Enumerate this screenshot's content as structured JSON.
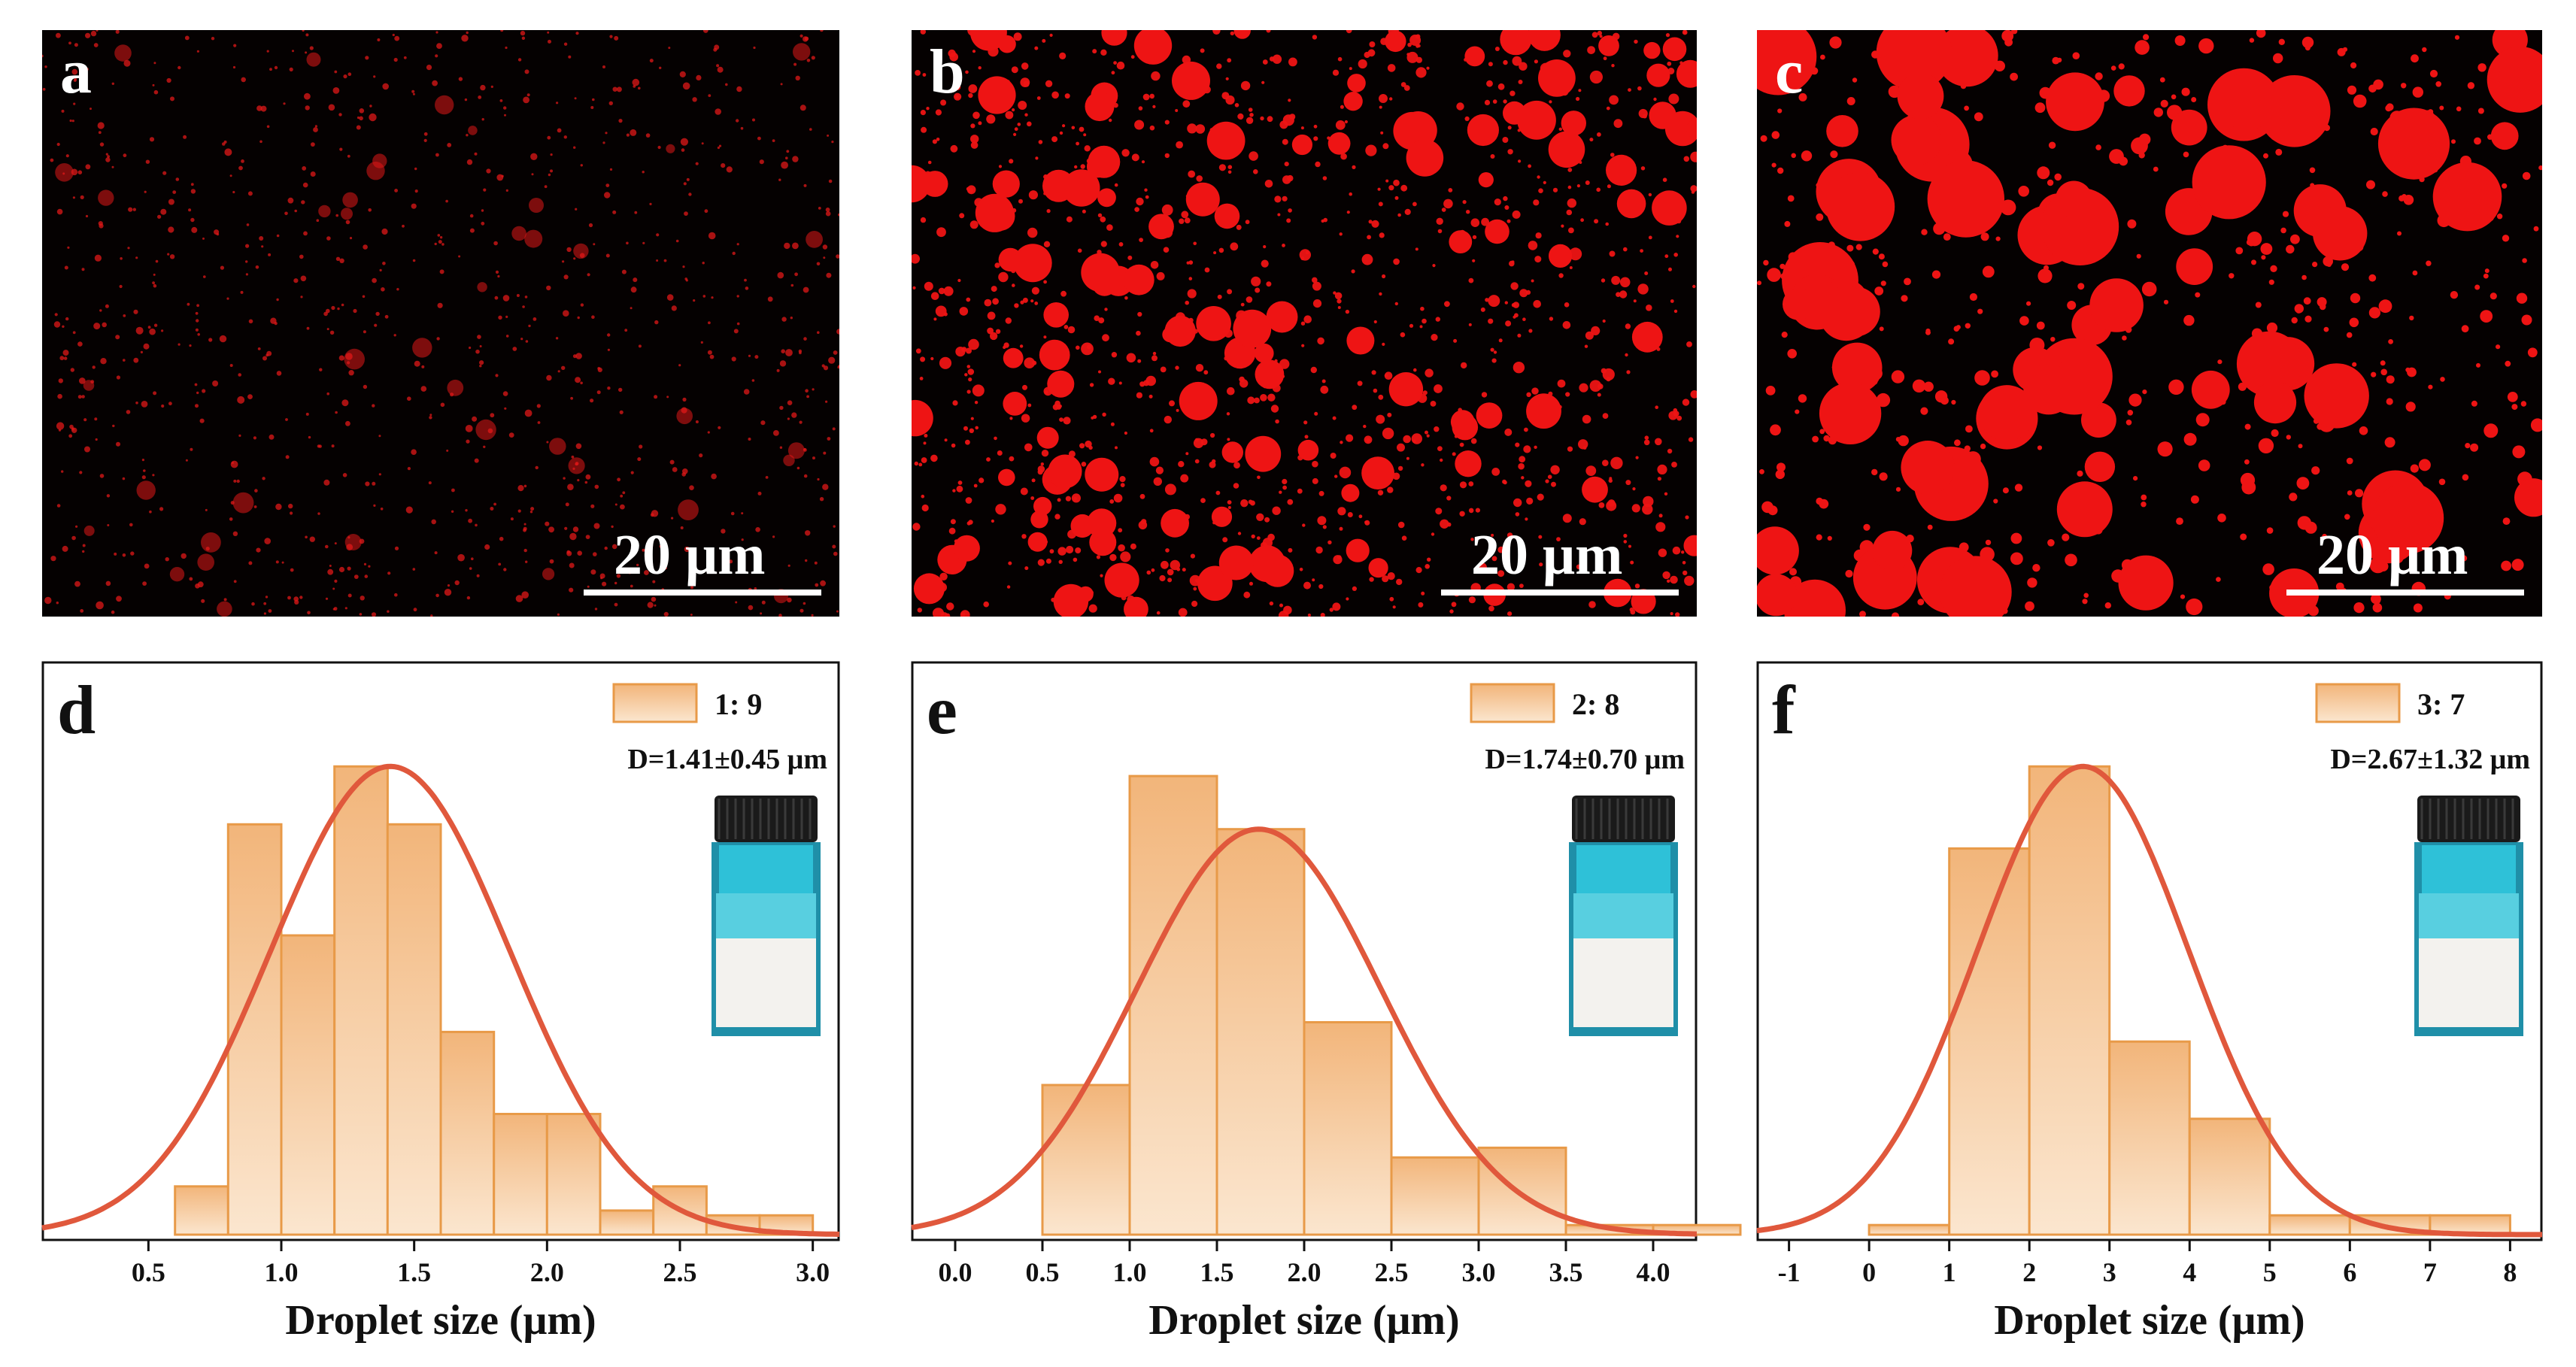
{
  "micrographs": [
    {
      "label": "a",
      "scale_bar": "20 μm",
      "color": "#e01818"
    },
    {
      "label": "b",
      "scale_bar": "20 μm",
      "color": "#ee1414"
    },
    {
      "label": "c",
      "scale_bar": "20 μm",
      "color": "#ee1414"
    }
  ],
  "colors": {
    "bar_fill_top": "#f2b57a",
    "bar_fill_bottom": "#fbe6cf",
    "bar_edge": "#e89a48",
    "curve": "#e0583c",
    "background": "#050101"
  },
  "chart_data": [
    {
      "type": "bar",
      "panel": "d",
      "legend": "1: 9",
      "annotation": "D=1.41±0.45 μm",
      "xlabel": "Droplet size (μm)",
      "ylabel": "",
      "xlim": [
        0.1,
        3.1
      ],
      "ylim": [
        0,
        1.0
      ],
      "xticks": [
        0.5,
        1.0,
        1.5,
        2.0,
        2.5,
        3.0
      ],
      "xtick_labels": [
        "0.5",
        "1.0",
        "1.5",
        "2.0",
        "2.5",
        "3.0"
      ],
      "bin_edges": [
        0.6,
        0.8,
        1.0,
        1.2,
        1.4,
        1.6,
        1.8,
        2.0,
        2.2,
        2.4,
        2.6,
        2.8,
        3.0
      ],
      "values": [
        0.1,
        0.85,
        0.62,
        0.97,
        0.85,
        0.42,
        0.25,
        0.25,
        0.05,
        0.1,
        0.04,
        0.04
      ],
      "fit": {
        "mean": 1.41,
        "sd": 0.45,
        "peak": 0.97
      }
    },
    {
      "type": "bar",
      "panel": "e",
      "legend": "2: 8",
      "annotation": "D=1.74±0.70 μm",
      "xlabel": "Droplet size (μm)",
      "ylabel": "",
      "xlim": [
        -0.25,
        4.25
      ],
      "ylim": [
        0,
        1.0
      ],
      "xticks": [
        0.0,
        0.5,
        1.0,
        1.5,
        2.0,
        2.5,
        3.0,
        3.5,
        4.0
      ],
      "xtick_labels": [
        "0.0",
        "0.5",
        "1.0",
        "1.5",
        "2.0",
        "2.5",
        "3.0",
        "3.5",
        "4.0"
      ],
      "bin_edges": [
        0.5,
        1.0,
        1.5,
        2.0,
        2.5,
        3.0,
        3.5,
        4.0,
        4.5
      ],
      "values": [
        0.31,
        0.95,
        0.84,
        0.44,
        0.16,
        0.18,
        0.02,
        0.02
      ],
      "fit": {
        "mean": 1.74,
        "sd": 0.7,
        "peak": 0.84
      }
    },
    {
      "type": "bar",
      "panel": "f",
      "legend": "3: 7",
      "annotation": "D=2.67±1.32 μm",
      "xlabel": "Droplet size (μm)",
      "ylabel": "",
      "xlim": [
        -1.4,
        8.4
      ],
      "ylim": [
        0,
        1.0
      ],
      "xticks": [
        -1,
        0,
        1,
        2,
        3,
        4,
        5,
        6,
        7,
        8
      ],
      "xtick_labels": [
        "-1",
        "0",
        "1",
        "2",
        "3",
        "4",
        "5",
        "6",
        "7",
        "8"
      ],
      "bin_edges": [
        0,
        1,
        2,
        3,
        4,
        5,
        6,
        7,
        8
      ],
      "values": [
        0.02,
        0.8,
        0.97,
        0.4,
        0.24,
        0.04,
        0.04,
        0.04
      ],
      "fit": {
        "mean": 2.67,
        "sd": 1.32,
        "peak": 0.97
      }
    }
  ]
}
